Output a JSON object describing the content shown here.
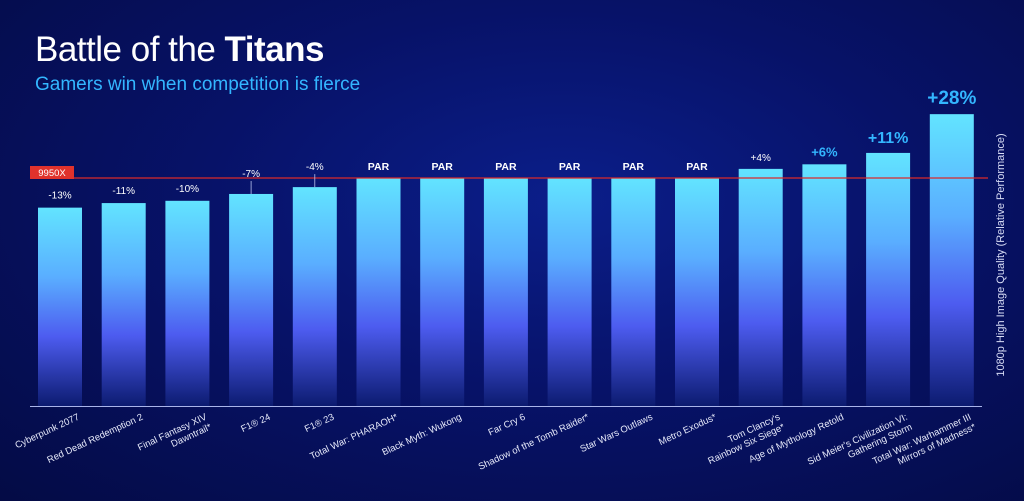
{
  "header": {
    "title_light": "Battle of the ",
    "title_bold": "Titans",
    "subtitle": "Gamers win when competition is fierce"
  },
  "chart_data": {
    "type": "bar",
    "title": "Battle of the Titans",
    "subtitle": "Gamers win when competition is fierce",
    "xlabel": "",
    "ylabel": "1080p High Image Quality (Relative Performance)",
    "baseline_label": "9950X",
    "categories": [
      "Cyberpunk 2077",
      "Red Dead Redemption 2",
      "Final Fantasy XIV Dawntrail*",
      "F1® 24",
      "F1® 23",
      "Total War: PHARAOH*",
      "Black Myth: Wukong",
      "Far Cry 6",
      "Shadow of the Tomb Raider*",
      "Star Wars Outlaws",
      "Metro Exodus*",
      "Tom Clancy's Rainbow Six Siege*",
      "Age of Mythology Retold",
      "Sid Meier's Civilization VI: Gathering Storm",
      "Total War: Warhammer III Mirrors of Madness*"
    ],
    "category_lines": [
      [
        "Cyberpunk 2077"
      ],
      [
        "Red Dead Redemption 2"
      ],
      [
        "Final Fantasy XIV",
        "Dawntrail*"
      ],
      [
        "F1® 24"
      ],
      [
        "F1® 23"
      ],
      [
        "Total War: PHARAOH*"
      ],
      [
        "Black Myth: Wukong"
      ],
      [
        "Far Cry 6"
      ],
      [
        "Shadow of the Tomb Raider*"
      ],
      [
        "Star Wars Outlaws"
      ],
      [
        "Metro Exodus*"
      ],
      [
        "Tom Clancy's",
        "Rainbow Six Siege*"
      ],
      [
        "Age of Mythology Retold"
      ],
      [
        "Sid Meier's Civilization VI:",
        "Gathering Storm"
      ],
      [
        "Total War: Warhammer III",
        "Mirrors of Madness*"
      ]
    ],
    "values": [
      -13,
      -11,
      -10,
      -7,
      -4,
      0,
      0,
      0,
      0,
      0,
      0,
      4,
      6,
      11,
      28
    ],
    "labels": [
      "-13%",
      "-11%",
      "-10%",
      "-7%",
      "-4%",
      "PAR",
      "PAR",
      "PAR",
      "PAR",
      "PAR",
      "PAR",
      "+4%",
      "+6%",
      "+11%",
      "+28%"
    ],
    "ylim": [
      -100,
      30
    ],
    "grid": false,
    "colors": {
      "bar_top": "#5fe0ff",
      "bar_mid": "#4e6cf5",
      "bar_bottom": "#0a1a6a",
      "baseline": "#e0322c",
      "negative_label": "#ffffff",
      "positive_label": "#33b6ff"
    }
  }
}
